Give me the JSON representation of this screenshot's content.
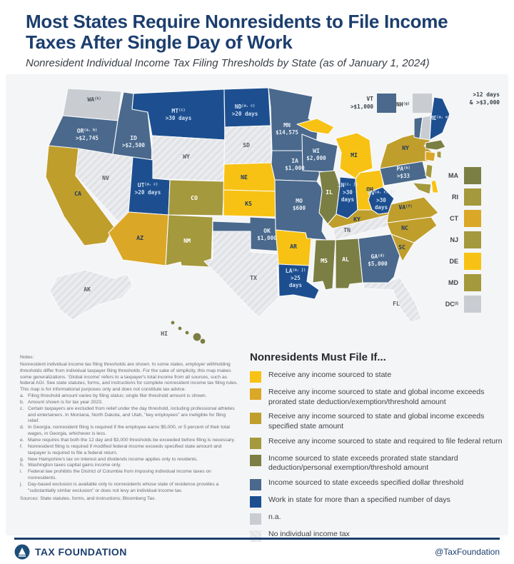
{
  "header": {
    "title": "Most States Require Nonresidents to File Income Taxes After Single Day of Work",
    "subtitle": "Nonresident Individual Income Tax Filing Thresholds by State (as of January 1, 2024)"
  },
  "chart_data": {
    "type": "choropleth",
    "title": "Nonresident Individual Income Tax Filing Thresholds by State (as of January 1, 2024)",
    "legend_title": "Nonresidents Must File If...",
    "legend": [
      {
        "cat": 1,
        "color": "#F7C214",
        "label": "Receive any income sourced to state"
      },
      {
        "cat": 2,
        "color": "#DBA727",
        "label": "Receive any income sourced to state and global income exceeds prorated state deduction/exemption/threshold amount"
      },
      {
        "cat": 3,
        "color": "#C09E2C",
        "label": "Receive any income sourced to state and global income exceeds specified state amount"
      },
      {
        "cat": 4,
        "color": "#A4993C",
        "label": "Receive any income sourced to state and required to file federal return"
      },
      {
        "cat": 5,
        "color": "#7C7F44",
        "label": "Income sourced to state exceeds prorated state standard deduction/personal exemption/threshold amount"
      },
      {
        "cat": 6,
        "color": "#4A698C",
        "label": "Income sourced to state exceeds specified dollar threshold"
      },
      {
        "cat": 7,
        "color": "#1D4F90",
        "label": "Work in state for more than a specified number of days"
      },
      {
        "cat": 8,
        "color": "#C9CDD2",
        "label": "n.a."
      },
      {
        "cat": 9,
        "color": "#E9EBED",
        "label": "No individual income tax"
      }
    ],
    "states": [
      {
        "abbr": "WA",
        "note": "h",
        "cat": 8
      },
      {
        "abbr": "OR",
        "note": "a, b",
        "value": ">$2,745",
        "cat": 6
      },
      {
        "abbr": "CA",
        "cat": 3
      },
      {
        "abbr": "NV",
        "cat": 9
      },
      {
        "abbr": "ID",
        "value": ">$2,500",
        "cat": 6
      },
      {
        "abbr": "MT",
        "note": "c",
        "value": ">30 days",
        "cat": 7
      },
      {
        "abbr": "WY",
        "cat": 9
      },
      {
        "abbr": "UT",
        "note": "a, c",
        "value": ">20 days",
        "cat": 7
      },
      {
        "abbr": "AZ",
        "cat": 2
      },
      {
        "abbr": "CO",
        "cat": 4
      },
      {
        "abbr": "NM",
        "cat": 4
      },
      {
        "abbr": "ND",
        "note": "a, c",
        "value": ">20 days",
        "cat": 7
      },
      {
        "abbr": "SD",
        "cat": 9
      },
      {
        "abbr": "NE",
        "cat": 1
      },
      {
        "abbr": "KS",
        "cat": 1
      },
      {
        "abbr": "OK",
        "value": "$1,000",
        "cat": 6
      },
      {
        "abbr": "TX",
        "cat": 9
      },
      {
        "abbr": "MN",
        "value": "$14,575",
        "cat": 6
      },
      {
        "abbr": "IA",
        "value": "$1,000",
        "cat": 6
      },
      {
        "abbr": "MO",
        "value": "$600",
        "cat": 6
      },
      {
        "abbr": "AR",
        "cat": 1
      },
      {
        "abbr": "LA",
        "note": "a, j",
        "value": ">25\ndays",
        "cat": 7
      },
      {
        "abbr": "WI",
        "value": "$2,000",
        "cat": 6
      },
      {
        "abbr": "IL",
        "cat": 5
      },
      {
        "abbr": "MI",
        "cat": 1
      },
      {
        "abbr": "IN",
        "note": "c, j",
        "value": ">30\ndays",
        "cat": 7
      },
      {
        "abbr": "OH",
        "cat": 1
      },
      {
        "abbr": "KY",
        "cat": 3
      },
      {
        "abbr": "TN",
        "cat": 9
      },
      {
        "abbr": "MS",
        "cat": 5
      },
      {
        "abbr": "AL",
        "cat": 5
      },
      {
        "abbr": "GA",
        "note": "d",
        "value": "$5,000",
        "cat": 6
      },
      {
        "abbr": "FL",
        "cat": 9
      },
      {
        "abbr": "SC",
        "cat": 3
      },
      {
        "abbr": "NC",
        "cat": 3
      },
      {
        "abbr": "VA",
        "note": "f",
        "cat": 3
      },
      {
        "abbr": "WV",
        "note": "a, c, j",
        "value": ">30\ndays",
        "cat": 7
      },
      {
        "abbr": "PA",
        "note": "b",
        "value": ">$33",
        "cat": 6
      },
      {
        "abbr": "NY",
        "cat": 3
      },
      {
        "abbr": "NJ",
        "cat": 4
      },
      {
        "abbr": "DE",
        "cat": 1
      },
      {
        "abbr": "MD",
        "cat": 4
      },
      {
        "abbr": "CT",
        "cat": 2
      },
      {
        "abbr": "RI",
        "cat": 4
      },
      {
        "abbr": "MA",
        "cat": 5
      },
      {
        "abbr": "VT",
        "value": ">$1,000",
        "cat": 6
      },
      {
        "abbr": "NH",
        "note": "g",
        "cat": 8
      },
      {
        "abbr": "ME",
        "note": "a, e",
        "cat": 7
      },
      {
        "abbr": "AK",
        "cat": 9
      },
      {
        "abbr": "HI",
        "cat": 5
      },
      {
        "abbr": "DC",
        "note": "i",
        "cat": 8
      }
    ],
    "small_states": [
      "MA",
      "RI",
      "CT",
      "NJ",
      "DE",
      "MD",
      "DC"
    ],
    "callouts": {
      "vt_label": "VT",
      "vt_value": ">$1,000",
      "nh_label": "NH",
      "nh_note": "g",
      "me_annotation_line1": ">12 days",
      "me_annotation_line2": "& >$3,000"
    }
  },
  "notes": {
    "heading": "Notes:",
    "intro": "Nonresident individual income tax filing thresholds are shown. In some states, employer withholding thresholds differ from individual taxpayer filing thresholds. For the sake of simplicity, this map makes some generalizations. 'Global income' refers to a taxpayer's total income from all sources, such as federal AGI. See state statutes, forms, and instructions for complete nonresident income tax filing rules. This map is for informational purposes only and does not constitute tax advice.",
    "items": [
      {
        "letter": "a.",
        "text": "Filing threshold amount varies by filing status; single filer threshold amount is shown."
      },
      {
        "letter": "b.",
        "text": "Amount shown is for tax year 2023."
      },
      {
        "letter": "c.",
        "text": "Certain taxpayers are excluded from relief under the day threshold, including professional athletes and entertainers. In Montana, North Dakota, and Utah, \"key employees\" are ineligible for filing relief."
      },
      {
        "letter": "d.",
        "text": "In Georgia, nonresident filing is required if the employee earns $5,000, or 5 percent of their total wages, in Georgia, whichever is less."
      },
      {
        "letter": "e.",
        "text": "Maine requires that both the 12 day and $3,000 thresholds be exceeded before filing is necessary."
      },
      {
        "letter": "f.",
        "text": "Nonresident filing is required if modified federal income exceeds specified state amount and taxpayer is required to file a federal return."
      },
      {
        "letter": "g.",
        "text": "New Hampshire's tax on interest and dividends income applies only to residents."
      },
      {
        "letter": "h.",
        "text": "Washington taxes capital gains income only."
      },
      {
        "letter": "i.",
        "text": "Federal law prohibits the District of Columbia from imposing individual income taxes on nonresidents."
      },
      {
        "letter": "j.",
        "text": "Day-based exclusion is available only to nonresidents whose state of residence provides a \"substantially similar exclusion\" or does not levy an individual income tax."
      }
    ],
    "sources": "Sources: State statutes, forms, and instructions; Bloomberg Tax."
  },
  "footer": {
    "brand": "TAX FOUNDATION",
    "handle": "@TaxFoundation"
  }
}
